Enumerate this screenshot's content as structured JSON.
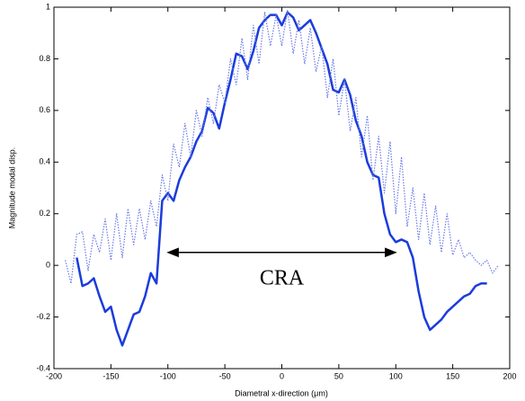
{
  "chart_data": {
    "type": "line",
    "ylabel": "Magnitude modal disp.",
    "xlabel": "Diametral x-direction (μm)",
    "xlim": [
      -200,
      200
    ],
    "xticks": [
      -200,
      -150,
      -100,
      -50,
      0,
      50,
      100,
      150,
      200
    ],
    "ylim": [
      -0.4,
      1
    ],
    "yticks": [
      -0.4,
      -0.2,
      0,
      0.2,
      0.4,
      0.6,
      0.8,
      1
    ],
    "grid": false,
    "series": [
      {
        "color": "#1a3cdc",
        "style": "solid",
        "x": [
          -180,
          -175,
          -170,
          -165,
          -160,
          -155,
          -150,
          -145,
          -140,
          -135,
          -130,
          -125,
          -120,
          -115,
          -110,
          -105,
          -100,
          -95,
          -90,
          -85,
          -80,
          -75,
          -70,
          -65,
          -60,
          -55,
          -50,
          -45,
          -40,
          -35,
          -30,
          -25,
          -20,
          -15,
          -10,
          -5,
          0,
          5,
          10,
          15,
          20,
          25,
          30,
          35,
          40,
          45,
          50,
          55,
          60,
          65,
          70,
          75,
          80,
          85,
          90,
          95,
          100,
          105,
          110,
          115,
          120,
          125,
          130,
          135,
          140,
          145,
          150,
          155,
          160,
          165,
          170,
          175,
          180
        ],
        "values": [
          0.03,
          -0.08,
          -0.07,
          -0.05,
          -0.12,
          -0.18,
          -0.16,
          -0.25,
          -0.31,
          -0.25,
          -0.19,
          -0.18,
          -0.12,
          -0.03,
          -0.07,
          0.25,
          0.28,
          0.25,
          0.33,
          0.38,
          0.42,
          0.48,
          0.52,
          0.61,
          0.59,
          0.53,
          0.63,
          0.72,
          0.82,
          0.81,
          0.76,
          0.83,
          0.92,
          0.95,
          0.97,
          0.97,
          0.93,
          0.98,
          0.96,
          0.91,
          0.93,
          0.95,
          0.9,
          0.84,
          0.78,
          0.68,
          0.67,
          0.72,
          0.66,
          0.56,
          0.5,
          0.4,
          0.35,
          0.34,
          0.2,
          0.12,
          0.09,
          0.1,
          0.09,
          0.03,
          -0.1,
          -0.2,
          -0.25,
          -0.23,
          -0.21,
          -0.18,
          -0.16,
          -0.14,
          -0.12,
          -0.11,
          -0.08,
          -0.07,
          -0.07
        ]
      },
      {
        "color": "#6a7ae6",
        "style": "dotted",
        "x": [
          -190,
          -185,
          -180,
          -175,
          -170,
          -165,
          -160,
          -155,
          -150,
          -145,
          -140,
          -135,
          -130,
          -125,
          -120,
          -115,
          -110,
          -105,
          -100,
          -95,
          -90,
          -85,
          -80,
          -75,
          -70,
          -65,
          -60,
          -55,
          -50,
          -45,
          -40,
          -35,
          -30,
          -25,
          -20,
          -15,
          -10,
          -5,
          0,
          5,
          10,
          15,
          20,
          25,
          30,
          35,
          40,
          45,
          50,
          55,
          60,
          65,
          70,
          75,
          80,
          85,
          90,
          95,
          100,
          105,
          110,
          115,
          120,
          125,
          130,
          135,
          140,
          145,
          150,
          155,
          160,
          165,
          170,
          175,
          180,
          185,
          190
        ],
        "values": [
          0.02,
          -0.07,
          0.12,
          0.13,
          -0.02,
          0.12,
          0.05,
          0.18,
          0.02,
          0.2,
          0.03,
          0.22,
          0.08,
          0.22,
          0.1,
          0.25,
          0.15,
          0.35,
          0.25,
          0.47,
          0.38,
          0.55,
          0.42,
          0.6,
          0.5,
          0.65,
          0.55,
          0.7,
          0.63,
          0.8,
          0.7,
          0.88,
          0.72,
          0.93,
          0.78,
          0.98,
          0.85,
          0.97,
          0.85,
          0.99,
          0.82,
          0.95,
          0.78,
          0.92,
          0.75,
          0.85,
          0.65,
          0.8,
          0.58,
          0.72,
          0.52,
          0.65,
          0.42,
          0.58,
          0.33,
          0.5,
          0.28,
          0.48,
          0.2,
          0.42,
          0.15,
          0.3,
          0.1,
          0.28,
          0.08,
          0.23,
          0.05,
          0.2,
          0.04,
          0.1,
          0.03,
          0.05,
          0.02,
          0,
          0.02,
          -0.03,
          0
        ]
      }
    ],
    "annotation": {
      "text": "CRA",
      "x": [
        -100,
        100
      ],
      "y": 0.05
    }
  }
}
